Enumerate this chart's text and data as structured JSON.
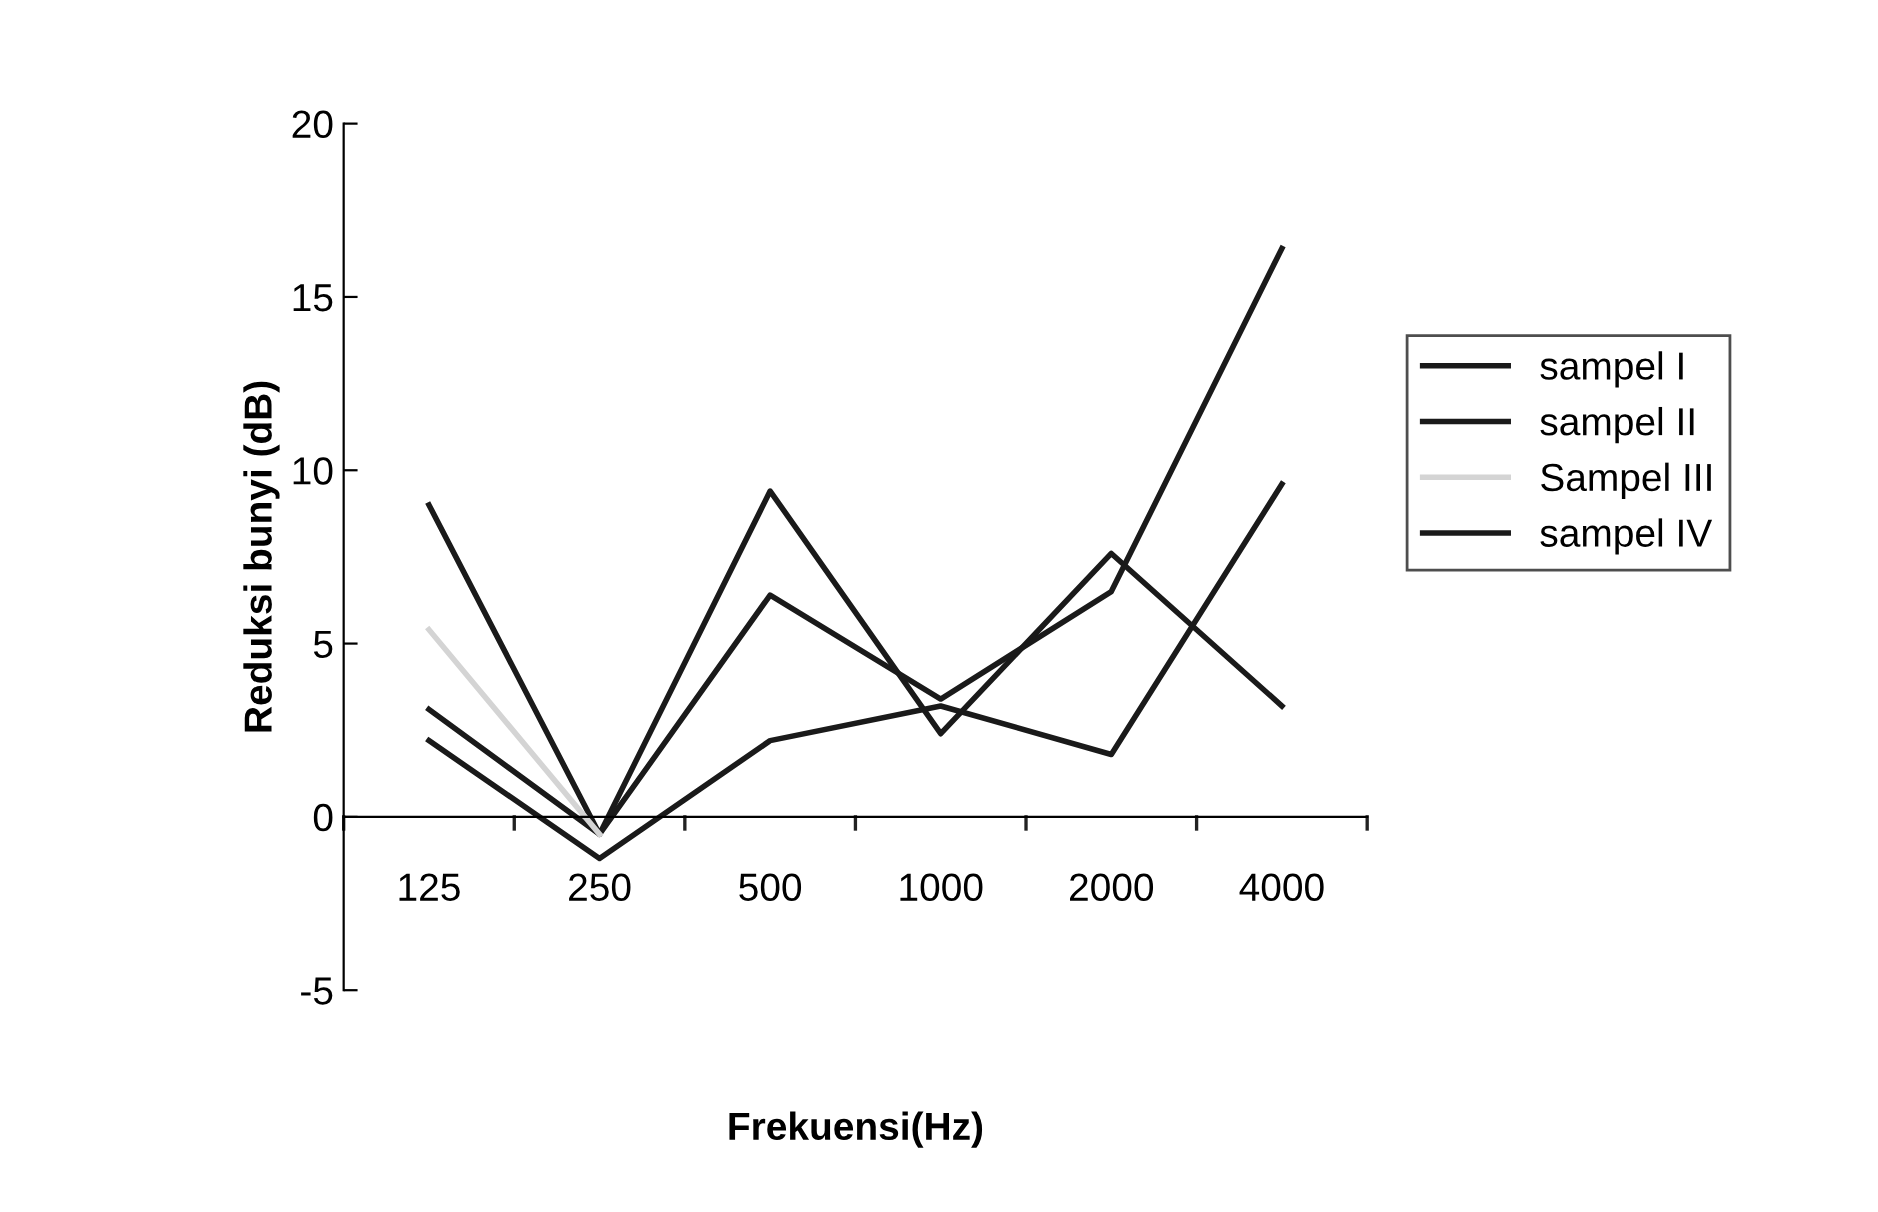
{
  "chart_data": {
    "type": "line",
    "xlabel": "Frekuensi(Hz)",
    "ylabel": "Reduksi bunyi (dB)",
    "categories": [
      "125",
      "250",
      "500",
      "1000",
      "2000",
      "4000"
    ],
    "series": [
      {
        "name": "sampel I",
        "color": "#1a1a1a",
        "values": [
          9.0,
          -0.5,
          9.4,
          2.4,
          7.6,
          3.2
        ]
      },
      {
        "name": "sampel II",
        "color": "#1a1a1a",
        "values": [
          3.1,
          -0.5,
          6.4,
          3.4,
          6.5,
          16.4
        ]
      },
      {
        "name": "Sampel III",
        "color": "#d4d4d4",
        "values": [
          5.4,
          -0.5,
          null,
          null,
          null,
          null
        ]
      },
      {
        "name": "sampel IV",
        "color": "#1a1a1a",
        "values": [
          2.2,
          -1.2,
          2.2,
          3.2,
          1.8,
          9.6
        ]
      }
    ],
    "ylim": [
      -5,
      20
    ],
    "yticks": [
      -5,
      0,
      5,
      10,
      15,
      20
    ],
    "grid": false,
    "legend": "right",
    "marker": "none",
    "line_style": "solid"
  }
}
